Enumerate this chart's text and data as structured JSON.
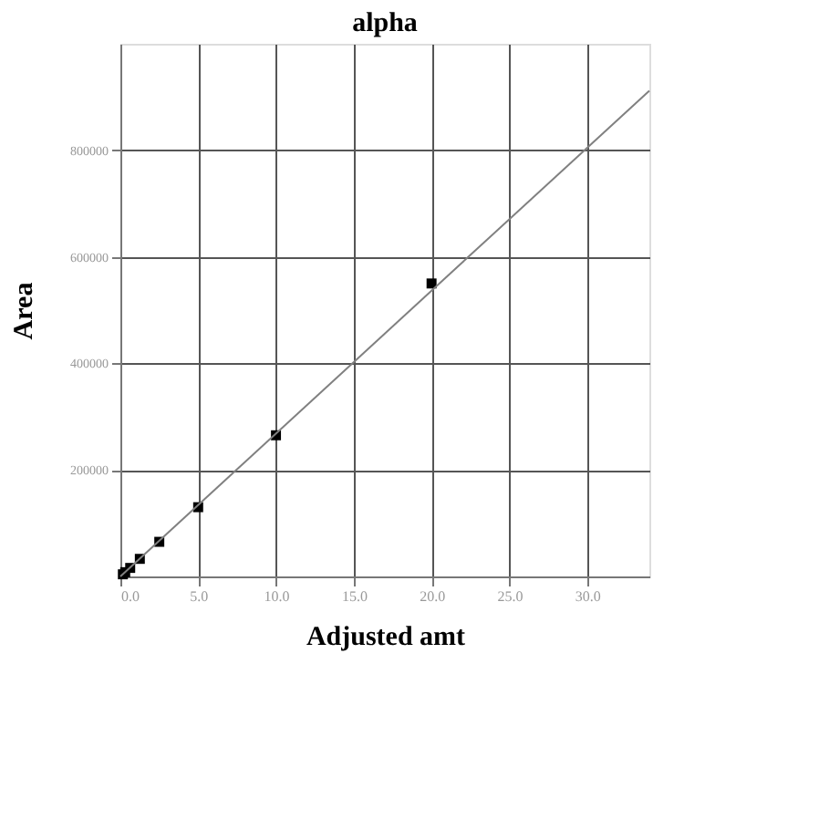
{
  "chart_data": {
    "type": "scatter",
    "title": "alpha",
    "xlabel": "Adjusted amt",
    "ylabel": "Area",
    "xlim": [
      0,
      34
    ],
    "ylim": [
      0,
      1000000
    ],
    "xticks": [
      {
        "value": 0,
        "label": "0.0"
      },
      {
        "value": 5,
        "label": "5.0"
      },
      {
        "value": 10,
        "label": "10.0"
      },
      {
        "value": 15,
        "label": "15.0"
      },
      {
        "value": 20,
        "label": "20.0"
      },
      {
        "value": 25,
        "label": "25.0"
      },
      {
        "value": 30,
        "label": "30.0"
      }
    ],
    "yticks": [
      200000,
      400000,
      600000,
      800000
    ],
    "grid": true,
    "series": [
      {
        "marker": "square",
        "color": "#000000",
        "x": [
          0.16,
          0.31,
          0.63,
          1.25,
          2.5,
          5,
          10,
          20
        ],
        "values": [
          4000,
          8000,
          16000,
          33000,
          65000,
          130000,
          265000,
          550000
        ]
      },
      {
        "type": "line",
        "color": "#808080",
        "x": [
          0,
          34
        ],
        "values": [
          0,
          912000
        ],
        "line_style": "solid"
      }
    ]
  }
}
